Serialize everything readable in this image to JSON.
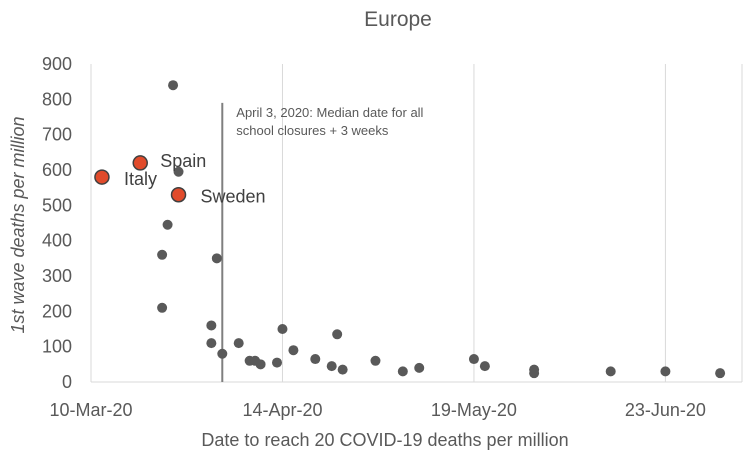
{
  "chart_data": {
    "type": "scatter",
    "title": "Europe",
    "xlabel": "Date to reach 20 COVID-19 deaths per million",
    "ylabel": "1st wave deaths per million",
    "x_axis": {
      "min": "2020-03-10",
      "max": "2020-07-07",
      "ticks": [
        "10-Mar-20",
        "14-Apr-20",
        "19-May-20",
        "23-Jun-20"
      ]
    },
    "y_axis": {
      "min": 0,
      "max": 900,
      "ticks": [
        0,
        100,
        200,
        300,
        400,
        500,
        600,
        700,
        800,
        900
      ]
    },
    "grid": "vertical",
    "colors": {
      "point": "#595959",
      "highlight": "#e14b2b",
      "axis": "#d9d9d9",
      "grid": "#d9d9d9",
      "reference_line": "#7f7f7f"
    },
    "reference_line": {
      "x": "2020-04-03",
      "label_lines": [
        "April 3, 2020: Median date for all",
        "school closures + 3 weeks"
      ]
    },
    "highlighted_points": [
      {
        "label": "Italy",
        "x": "2020-03-12",
        "y": 580
      },
      {
        "label": "Spain",
        "x": "2020-03-19",
        "y": 620
      },
      {
        "label": "Sweden",
        "x": "2020-03-26",
        "y": 530
      }
    ],
    "points": [
      {
        "x": "2020-03-25",
        "y": 840
      },
      {
        "x": "2020-03-26",
        "y": 595
      },
      {
        "x": "2020-03-24",
        "y": 445
      },
      {
        "x": "2020-03-23",
        "y": 360
      },
      {
        "x": "2020-03-23",
        "y": 210
      },
      {
        "x": "2020-04-02",
        "y": 350
      },
      {
        "x": "2020-04-01",
        "y": 160
      },
      {
        "x": "2020-04-01",
        "y": 110
      },
      {
        "x": "2020-04-03",
        "y": 80
      },
      {
        "x": "2020-04-06",
        "y": 110
      },
      {
        "x": "2020-04-08",
        "y": 60
      },
      {
        "x": "2020-04-09",
        "y": 60
      },
      {
        "x": "2020-04-10",
        "y": 50
      },
      {
        "x": "2020-04-13",
        "y": 55
      },
      {
        "x": "2020-04-14",
        "y": 150
      },
      {
        "x": "2020-04-16",
        "y": 90
      },
      {
        "x": "2020-04-20",
        "y": 65
      },
      {
        "x": "2020-04-23",
        "y": 45
      },
      {
        "x": "2020-04-24",
        "y": 135
      },
      {
        "x": "2020-04-25",
        "y": 35
      },
      {
        "x": "2020-05-01",
        "y": 60
      },
      {
        "x": "2020-05-06",
        "y": 30
      },
      {
        "x": "2020-05-09",
        "y": 40
      },
      {
        "x": "2020-05-19",
        "y": 65
      },
      {
        "x": "2020-05-21",
        "y": 45
      },
      {
        "x": "2020-05-30",
        "y": 35
      },
      {
        "x": "2020-05-30",
        "y": 25
      },
      {
        "x": "2020-06-13",
        "y": 30
      },
      {
        "x": "2020-06-23",
        "y": 30
      },
      {
        "x": "2020-07-03",
        "y": 25
      }
    ]
  }
}
